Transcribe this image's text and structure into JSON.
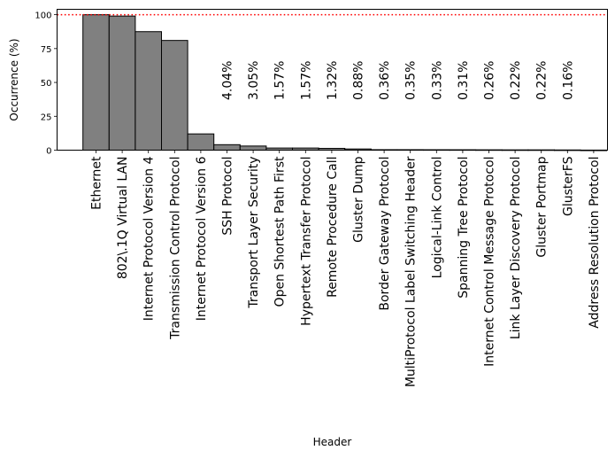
{
  "chart_data": {
    "type": "bar",
    "xlabel": "Header",
    "ylabel": "Occurrence (%)",
    "ylim": [
      0,
      104
    ],
    "yticks": [
      0,
      25,
      50,
      75,
      100
    ],
    "reference_line": {
      "value": 100,
      "color": "#ff0000",
      "style": "dotted"
    },
    "bar_color": "#808080",
    "bar_edge_color": "#000000",
    "grid": false,
    "categories": [
      "Ethernet",
      "802\\.1Q Virtual LAN",
      "Internet Protocol Version 4",
      "Transmission Control Protocol",
      "Internet Protocol Version 6",
      "SSH Protocol",
      "Transport Layer Security",
      "Open Shortest Path First",
      "Hypertext Transfer Protocol",
      "Remote Procedure Call",
      "Gluster Dump",
      "Border Gateway Protocol",
      "MultiProtocol Label Switching Header",
      "Logical-Link Control",
      "Spanning Tree Protocol",
      "Internet Control Message Protocol",
      "Link Layer Discovery Protocol",
      "Gluster Portmap",
      "GlusterFS",
      "Address Resolution Protocol"
    ],
    "values": [
      100,
      99.0,
      87.5,
      81.0,
      12.0,
      4.04,
      3.05,
      1.57,
      1.57,
      1.32,
      0.88,
      0.36,
      0.35,
      0.33,
      0.31,
      0.26,
      0.22,
      0.22,
      0.16,
      0.05
    ],
    "data_labels": [
      "",
      "",
      "",
      "",
      "",
      "4.04%",
      "3.05%",
      "1.57%",
      "1.57%",
      "1.32%",
      "0.88%",
      "0.36%",
      "0.35%",
      "0.33%",
      "0.31%",
      "0.26%",
      "0.22%",
      "0.22%",
      "0.16%",
      ""
    ]
  }
}
